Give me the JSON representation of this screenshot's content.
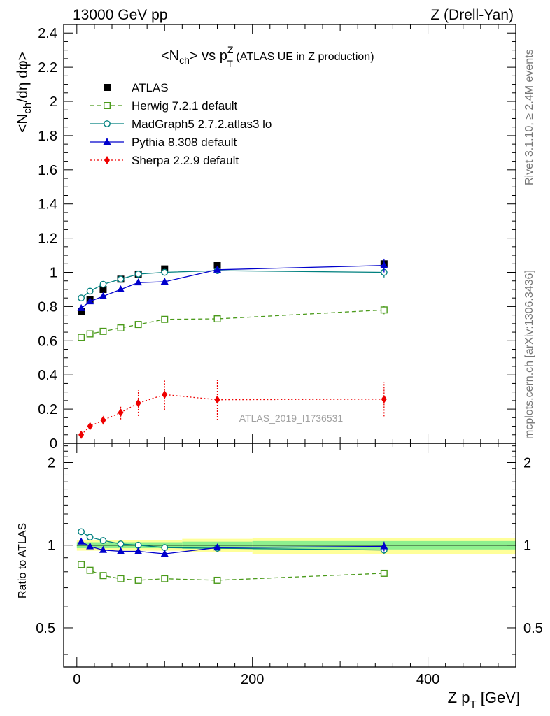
{
  "header": {
    "left": "13000 GeV pp",
    "right": "Z (Drell-Yan)"
  },
  "side_labels": {
    "top": "Rivet 3.1.10, ≥ 2.4M events",
    "bottom": "mcplots.cern.ch [arXiv:1306.3436]"
  },
  "chart_data": [
    {
      "type": "scatter",
      "title": {
        "open": "<N",
        "sub1": "ch",
        "mid": "> vs p",
        "sup": "Z",
        "sub2": "T",
        "rest": " (ATLAS UE in Z production)"
      },
      "ylabel": {
        "main": "<N",
        "sub": "ch",
        "rest": "/dη dφ>"
      },
      "analysis_label": "ATLAS_2019_I1736531",
      "xlim": [
        -15,
        500
      ],
      "ylim": [
        0,
        2.45
      ],
      "yticks": [
        "0",
        "0.2",
        "0.4",
        "0.6",
        "0.8",
        "1",
        "1.2",
        "1.4",
        "1.6",
        "1.8",
        "2",
        "2.2",
        "2.4"
      ],
      "legend_position": "top-left",
      "series": [
        {
          "name": "ATLAS",
          "color": "#000000",
          "marker": "square-filled",
          "line": "none",
          "points": [
            [
              5,
              0.77,
              0.01
            ],
            [
              15,
              0.84,
              0.01
            ],
            [
              30,
              0.9,
              0.01
            ],
            [
              50,
              0.96,
              0.01
            ],
            [
              70,
              0.99,
              0.01
            ],
            [
              100,
              1.02,
              0.01
            ],
            [
              160,
              1.04,
              0.01
            ],
            [
              350,
              1.05,
              0.02
            ]
          ]
        },
        {
          "name": "Herwig 7.2.1 default",
          "color": "#4a9a1a",
          "marker": "square-open",
          "line": "dashed",
          "points": [
            [
              5,
              0.62,
              0.005
            ],
            [
              15,
              0.64,
              0.005
            ],
            [
              30,
              0.655,
              0.005
            ],
            [
              50,
              0.675,
              0.005
            ],
            [
              70,
              0.695,
              0.006
            ],
            [
              100,
              0.725,
              0.01
            ],
            [
              160,
              0.728,
              0.012
            ],
            [
              350,
              0.78,
              0.025
            ]
          ]
        },
        {
          "name": "MadGraph5 2.7.2.atlas3 lo",
          "color": "#00807f",
          "marker": "circle-open",
          "line": "solid",
          "points": [
            [
              5,
              0.85,
              0.005
            ],
            [
              15,
              0.89,
              0.005
            ],
            [
              30,
              0.93,
              0.005
            ],
            [
              50,
              0.96,
              0.005
            ],
            [
              70,
              0.99,
              0.006
            ],
            [
              100,
              1.0,
              0.01
            ],
            [
              160,
              1.01,
              0.015
            ],
            [
              350,
              1.0,
              0.03
            ]
          ]
        },
        {
          "name": "Pythia 8.308 default",
          "color": "#0000cc",
          "marker": "triangle-filled",
          "line": "solid",
          "points": [
            [
              5,
              0.79,
              0.005
            ],
            [
              15,
              0.83,
              0.005
            ],
            [
              30,
              0.86,
              0.005
            ],
            [
              50,
              0.9,
              0.005
            ],
            [
              70,
              0.94,
              0.006
            ],
            [
              100,
              0.945,
              0.01
            ],
            [
              160,
              1.015,
              0.015
            ],
            [
              350,
              1.04,
              0.04
            ]
          ]
        },
        {
          "name": "Sherpa 2.2.9 default",
          "color": "#ee0000",
          "marker": "diamond-filled",
          "line": "dotted",
          "points": [
            [
              5,
              0.05,
              0.01
            ],
            [
              15,
              0.1,
              0.02
            ],
            [
              30,
              0.135,
              0.025
            ],
            [
              50,
              0.18,
              0.04
            ],
            [
              70,
              0.235,
              0.075
            ],
            [
              100,
              0.285,
              0.09
            ],
            [
              160,
              0.255,
              0.12
            ],
            [
              350,
              0.258,
              0.1
            ]
          ]
        }
      ]
    },
    {
      "type": "scatter",
      "ylabel": "Ratio to ATLAS",
      "xlabel": {
        "main": "Z p",
        "sub": "T",
        "rest": " [GeV]"
      },
      "xlim": [
        -15,
        500
      ],
      "ylim": [
        0.36,
        2.35
      ],
      "yscale": "log",
      "xticks": [
        "0",
        "200",
        "400"
      ],
      "yticks": [
        "0.5",
        "1",
        "2"
      ],
      "reference": 1.0,
      "bands": [
        {
          "x0": 0,
          "x1": 120,
          "yellow": [
            0.955,
            1.045
          ],
          "green": [
            0.975,
            1.025
          ]
        },
        {
          "x0": 120,
          "x1": 200,
          "yellow": [
            0.945,
            1.055
          ],
          "green": [
            0.97,
            1.03
          ]
        },
        {
          "x0": 200,
          "x1": 500,
          "yellow": [
            0.93,
            1.065
          ],
          "green": [
            0.965,
            1.035
          ]
        }
      ],
      "series": [
        {
          "name": "Herwig 7.2.1 default",
          "color": "#4a9a1a",
          "marker": "square-open",
          "line": "dashed",
          "points": [
            [
              5,
              0.85,
              0.005
            ],
            [
              15,
              0.81,
              0.005
            ],
            [
              30,
              0.775,
              0.005
            ],
            [
              50,
              0.755,
              0.005
            ],
            [
              70,
              0.745,
              0.006
            ],
            [
              100,
              0.755,
              0.008
            ],
            [
              160,
              0.745,
              0.01
            ],
            [
              350,
              0.79,
              0.02
            ]
          ]
        },
        {
          "name": "MadGraph5 2.7.2.atlas3 lo",
          "color": "#00807f",
          "marker": "circle-open",
          "line": "solid",
          "points": [
            [
              5,
              1.12,
              0.005
            ],
            [
              15,
              1.07,
              0.005
            ],
            [
              30,
              1.04,
              0.005
            ],
            [
              50,
              1.01,
              0.005
            ],
            [
              70,
              1.0,
              0.006
            ],
            [
              100,
              0.98,
              0.01
            ],
            [
              160,
              0.975,
              0.015
            ],
            [
              350,
              0.96,
              0.03
            ]
          ]
        },
        {
          "name": "Pythia 8.308 default",
          "color": "#0000cc",
          "marker": "triangle-filled",
          "line": "solid",
          "points": [
            [
              5,
              1.03,
              0.005
            ],
            [
              15,
              0.99,
              0.005
            ],
            [
              30,
              0.96,
              0.005
            ],
            [
              50,
              0.95,
              0.005
            ],
            [
              70,
              0.95,
              0.006
            ],
            [
              100,
              0.93,
              0.01
            ],
            [
              160,
              0.98,
              0.015
            ],
            [
              350,
              0.99,
              0.04
            ]
          ]
        }
      ]
    }
  ]
}
